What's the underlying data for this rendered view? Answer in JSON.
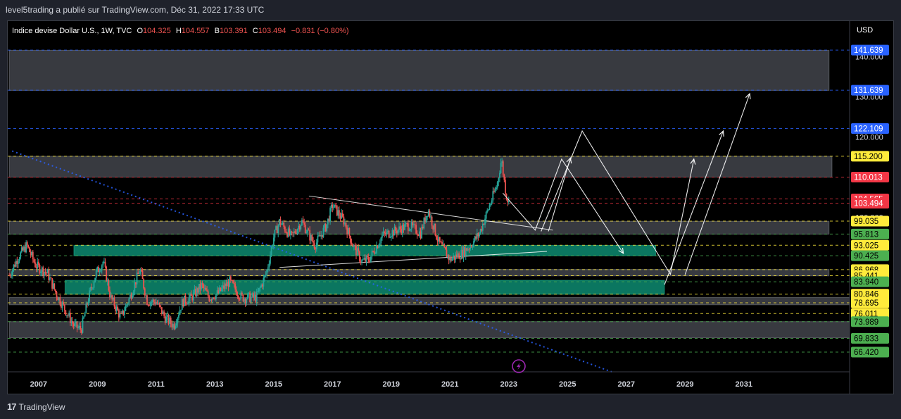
{
  "publisher": "level5trading a publié sur TradingView.com, Déc 31, 2022 17:33 UTC",
  "footer_brand": "TradingView",
  "legend": {
    "symbol": "Indice devise Dollar U.S., 1W, TVC",
    "o_label": "O",
    "o": "104.325",
    "h_label": "H",
    "h": "104.557",
    "b_label": "B",
    "b": "103.391",
    "c_label": "C",
    "c": "103.494",
    "change": "−0.831 (−0.80%)"
  },
  "colors": {
    "up": "#26a69a",
    "down": "#ef5350",
    "zone_gray": "#5d606b",
    "zone_green": "#0f9d80",
    "blue_tag": "#2962ff",
    "yellow_tag": "#ffeb3b",
    "green_tag": "#4caf50",
    "red_tag": "#f23645"
  },
  "chart_data": {
    "type": "candlestick",
    "currency": "USD",
    "x_ticks": [
      "2007",
      "2009",
      "2011",
      "2013",
      "2015",
      "2017",
      "2019",
      "2021",
      "2023",
      "2025",
      "2027",
      "2029",
      "2031"
    ],
    "x_range": [
      2005.95,
      2034.6
    ],
    "y_range": [
      61.5,
      145
    ],
    "y_ticks_hidden": [
      "140.000",
      "130.000",
      "120.000",
      "100.000"
    ],
    "price_points": [
      [
        2006.0,
        85.5
      ],
      [
        2006.3,
        90
      ],
      [
        2006.6,
        93
      ],
      [
        2006.9,
        88
      ],
      [
        2007.3,
        86
      ],
      [
        2007.6,
        81
      ],
      [
        2007.9,
        77
      ],
      [
        2008.2,
        73
      ],
      [
        2008.45,
        72
      ],
      [
        2008.7,
        80
      ],
      [
        2008.95,
        86
      ],
      [
        2009.2,
        89
      ],
      [
        2009.45,
        80
      ],
      [
        2009.8,
        75
      ],
      [
        2010.1,
        80
      ],
      [
        2010.45,
        87
      ],
      [
        2010.7,
        79
      ],
      [
        2011.0,
        79
      ],
      [
        2011.3,
        75
      ],
      [
        2011.6,
        73
      ],
      [
        2011.9,
        79
      ],
      [
        2012.2,
        80
      ],
      [
        2012.55,
        83
      ],
      [
        2012.8,
        80
      ],
      [
        2013.1,
        81
      ],
      [
        2013.5,
        84
      ],
      [
        2013.9,
        80
      ],
      [
        2014.4,
        80
      ],
      [
        2014.75,
        86
      ],
      [
        2015.0,
        95
      ],
      [
        2015.2,
        99
      ],
      [
        2015.6,
        95
      ],
      [
        2015.95,
        99
      ],
      [
        2016.4,
        93
      ],
      [
        2016.8,
        98
      ],
      [
        2017.0,
        103
      ],
      [
        2017.4,
        99
      ],
      [
        2017.7,
        93
      ],
      [
        2018.0,
        89
      ],
      [
        2018.25,
        89.5
      ],
      [
        2018.7,
        95.5
      ],
      [
        2019.1,
        96.5
      ],
      [
        2019.6,
        98
      ],
      [
        2020.0,
        96
      ],
      [
        2020.25,
        102
      ],
      [
        2020.6,
        94
      ],
      [
        2021.0,
        89.5
      ],
      [
        2021.4,
        91
      ],
      [
        2021.7,
        93
      ],
      [
        2022.0,
        96
      ],
      [
        2022.3,
        102
      ],
      [
        2022.6,
        108
      ],
      [
        2022.75,
        114.5
      ],
      [
        2022.9,
        106
      ],
      [
        2023.0,
        103.5
      ]
    ],
    "zones": [
      {
        "kind": "gray",
        "from": 2006.0,
        "to": 2033.9,
        "low": 131.6,
        "high": 141.6
      },
      {
        "kind": "gray",
        "from": 2006.0,
        "to": 2034.0,
        "low": 110.0,
        "high": 115.2
      },
      {
        "kind": "gray",
        "from": 2006.0,
        "to": 2033.9,
        "low": 95.8,
        "high": 99.0
      },
      {
        "kind": "green",
        "from": 2008.2,
        "to": 2028.0,
        "low": 90.4,
        "high": 93.0
      },
      {
        "kind": "gray",
        "from": 2006.0,
        "to": 2033.9,
        "low": 85.4,
        "high": 87.0
      },
      {
        "kind": "green",
        "from": 2007.9,
        "to": 2028.3,
        "low": 80.8,
        "high": 84.3
      },
      {
        "kind": "gray",
        "from": 2006.0,
        "to": 2037.0,
        "low": 78.2,
        "high": 80.0
      },
      {
        "kind": "gray",
        "from": 2006.0,
        "to": 2037.5,
        "low": 70.0,
        "high": 74.0
      }
    ],
    "levels": [
      {
        "price": 141.639,
        "label": "141.639",
        "tag": "blue",
        "line": "#2962ff"
      },
      {
        "price": 131.639,
        "label": "131.639",
        "tag": "blue",
        "line": "#2962ff"
      },
      {
        "price": 122.109,
        "label": "122.109",
        "tag": "blue",
        "line": "#2962ff"
      },
      {
        "price": 115.2,
        "label": "115.200",
        "tag": "yellow",
        "line": "#ffeb3b"
      },
      {
        "price": 110.013,
        "label": "110.013",
        "tag": "red",
        "line": "#f23645"
      },
      {
        "price": 104.565,
        "label": "104.565",
        "tag": "red",
        "line": "#f23645"
      },
      {
        "price": 103.494,
        "label": "103.494",
        "tag": "red",
        "line": "#f23645"
      },
      {
        "price": 99.035,
        "label": "99.035",
        "tag": "yellow",
        "line": "#ffeb3b"
      },
      {
        "price": 95.813,
        "label": "95.813",
        "tag": "green",
        "line": "#4caf50"
      },
      {
        "price": 93.025,
        "label": "93.025",
        "tag": "yellow",
        "line": "#ffeb3b"
      },
      {
        "price": 90.425,
        "label": "90.425",
        "tag": "green",
        "line": "#4caf50"
      },
      {
        "price": 86.968,
        "label": "86.968",
        "tag": "yellow",
        "line": "#ffeb3b"
      },
      {
        "price": 85.441,
        "label": "85.441",
        "tag": "yellow",
        "line": "#ffeb3b"
      },
      {
        "price": 83.94,
        "label": "83.940",
        "tag": "green",
        "line": "#4caf50"
      },
      {
        "price": 80.846,
        "label": "80.846",
        "tag": "yellow",
        "line": "#ffeb3b"
      },
      {
        "price": 78.695,
        "label": "78.695",
        "tag": "yellow",
        "line": "#ffeb3b"
      },
      {
        "price": 76.011,
        "label": "76.011",
        "tag": "yellow",
        "line": "#ffeb3b"
      },
      {
        "price": 73.989,
        "label": "73.989",
        "tag": "green",
        "line": "#4caf50"
      },
      {
        "price": 69.833,
        "label": "69.833",
        "tag": "green",
        "line": "#4caf50"
      },
      {
        "price": 66.42,
        "label": "66.420",
        "tag": "green",
        "line": "#4caf50"
      }
    ],
    "trend_lines": [
      {
        "from": [
          2006.1,
          116.5
        ],
        "to": [
          2026.5,
          61.5
        ],
        "color": "#2962ff",
        "style": "dotted"
      },
      {
        "from": [
          2016.2,
          105.3
        ],
        "to": [
          2024.5,
          96.8
        ],
        "color": "#ffffff",
        "style": "solid"
      },
      {
        "from": [
          2015.2,
          87.5
        ],
        "to": [
          2024.3,
          91.5
        ],
        "color": "#ffffff",
        "style": "solid"
      }
    ],
    "projection_paths": [
      [
        [
          2022.8,
          106
        ],
        [
          2023.9,
          96.8
        ],
        [
          2024.8,
          114.5
        ],
        [
          2026.9,
          91
        ]
      ],
      [
        [
          2024.1,
          96.5
        ],
        [
          2025.5,
          121.5
        ],
        [
          2028.5,
          85.8
        ],
        [
          2029.3,
          114.5
        ]
      ],
      [
        [
          2028.3,
          83.2
        ],
        [
          2030.3,
          121.5
        ]
      ],
      [
        [
          2029.0,
          85.7
        ],
        [
          2031.2,
          130.8
        ]
      ],
      [
        [
          2024.35,
          96.5
        ],
        [
          2025.1,
          114.8
        ]
      ]
    ]
  }
}
